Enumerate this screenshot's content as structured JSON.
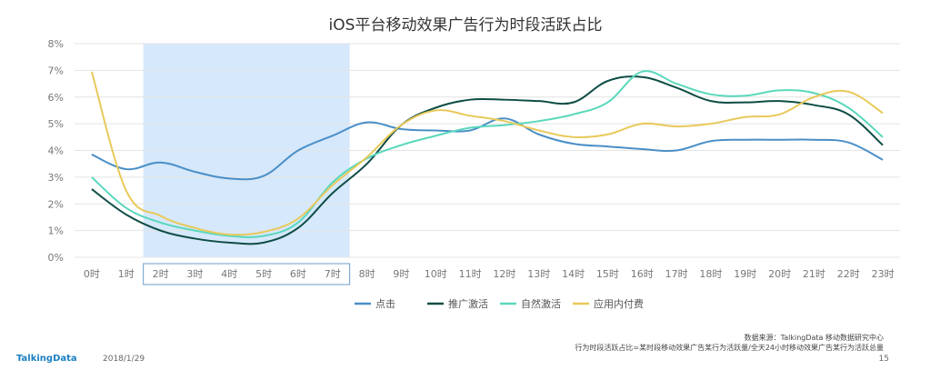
{
  "chart_data": {
    "type": "line",
    "title": "iOS平台移动效果广告行为时段活跃占比",
    "categories": [
      "0时",
      "1时",
      "2时",
      "3时",
      "4时",
      "5时",
      "6时",
      "7时",
      "8时",
      "9时",
      "10时",
      "11时",
      "12时",
      "13时",
      "14时",
      "15时",
      "16时",
      "17时",
      "18时",
      "19时",
      "20时",
      "21时",
      "22时",
      "23时"
    ],
    "y_ticks": [
      "0%",
      "1%",
      "2%",
      "3%",
      "4%",
      "5%",
      "6%",
      "7%",
      "8%"
    ],
    "ylim": [
      0,
      8
    ],
    "highlight_range": [
      2,
      7
    ],
    "legend_position": "bottom",
    "grid": true,
    "series": [
      {
        "name": "点击",
        "color": "#4a8fc7",
        "values": [
          3.85,
          3.3,
          3.55,
          3.2,
          2.95,
          3.05,
          4.0,
          4.55,
          5.05,
          4.8,
          4.75,
          4.75,
          5.2,
          4.6,
          4.25,
          4.15,
          4.05,
          4.0,
          4.35,
          4.4,
          4.4,
          4.4,
          4.3,
          3.65
        ]
      },
      {
        "name": "推广激活",
        "color": "#0e4d45",
        "values": [
          2.55,
          1.6,
          1.0,
          0.7,
          0.55,
          0.55,
          1.1,
          2.4,
          3.5,
          4.95,
          5.6,
          5.9,
          5.9,
          5.85,
          5.8,
          6.6,
          6.75,
          6.35,
          5.85,
          5.8,
          5.85,
          5.7,
          5.35,
          4.2
        ]
      },
      {
        "name": "自然激活",
        "color": "#5ad8bc",
        "values": [
          3.0,
          1.85,
          1.3,
          1.0,
          0.8,
          0.8,
          1.3,
          2.8,
          3.7,
          4.2,
          4.55,
          4.85,
          4.95,
          5.1,
          5.35,
          5.8,
          6.95,
          6.5,
          6.1,
          6.05,
          6.25,
          6.15,
          5.6,
          4.5
        ]
      },
      {
        "name": "应用内付费",
        "color": "#e8c95a",
        "values": [
          6.95,
          2.5,
          1.55,
          1.1,
          0.85,
          0.95,
          1.45,
          2.7,
          3.75,
          4.95,
          5.5,
          5.3,
          5.1,
          4.75,
          4.5,
          4.6,
          5.0,
          4.9,
          5.0,
          5.25,
          5.35,
          6.0,
          6.2,
          5.4
        ]
      }
    ]
  },
  "footer": {
    "brand": "TalkingData",
    "date": "2018/1/29",
    "source": "数据来源：TalkingData 移动数据研究中心",
    "note": "行为时段活跃占比=某时段移动效果广告某行为活跃量/全天24小时移动效果广告某行为活跃总量",
    "page": "15"
  }
}
